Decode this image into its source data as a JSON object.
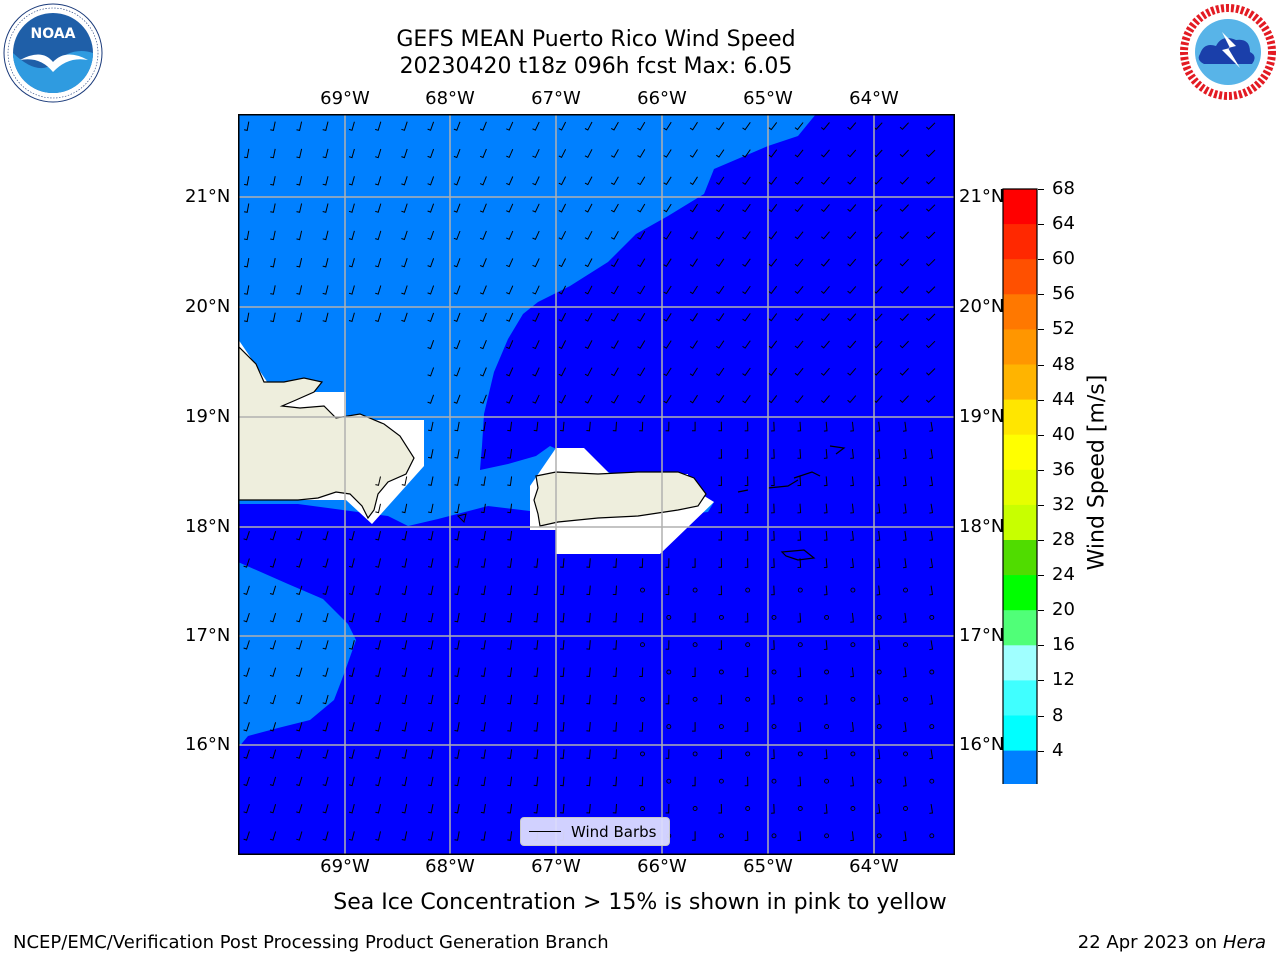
{
  "title": {
    "line1": "GEFS MEAN Puerto Rico Wind Speed",
    "line2": "20230420 t18z 096h fcst   Max: 6.05"
  },
  "logos": {
    "left": {
      "name": "NOAA",
      "ring_text": "NATIONAL OCEANIC AND ATMOSPHERIC ADMINISTRATION · U.S. DEPARTMENT OF COMMERCE"
    },
    "right": {
      "name": "NATIONAL WEATHER SERVICE"
    }
  },
  "map": {
    "lon_labels": [
      "69°W",
      "68°W",
      "67°W",
      "66°W",
      "65°W",
      "64°W"
    ],
    "lat_labels": [
      "21°N",
      "20°N",
      "19°N",
      "18°N",
      "17°N",
      "16°N"
    ],
    "legend_label": "Wind Barbs",
    "colors": {
      "speed_4_8": "#0080ff",
      "speed_below_4": "#0000ff",
      "land": "#eeeedd",
      "masked": "#ffffff",
      "grid": "#b0b0b0"
    }
  },
  "colorbar": {
    "label": "Wind Speed [m/s]",
    "ticks": [
      "68",
      "64",
      "60",
      "56",
      "52",
      "48",
      "44",
      "40",
      "36",
      "32",
      "28",
      "24",
      "20",
      "16",
      "12",
      "8",
      "4"
    ],
    "colors_top_to_bottom": [
      "#ff0000",
      "#ff2800",
      "#ff5000",
      "#ff7800",
      "#ff9600",
      "#ffb400",
      "#ffe600",
      "#ffff00",
      "#e6ff00",
      "#c8ff00",
      "#50dc00",
      "#00ff00",
      "#50ff78",
      "#a0ffff",
      "#40ffff",
      "#00ffff",
      "#0080ff"
    ],
    "extend_color": "#0000ff"
  },
  "footer": {
    "subtitle": "Sea Ice Concentration > 15% is shown in pink to yellow",
    "left": "NCEP/EMC/Verification Post Processing Product Generation Branch",
    "right_date": "22 Apr 2023 on",
    "right_machine": "Hera"
  },
  "chart_data": {
    "type": "map",
    "variable": "Wind Speed",
    "units": "m/s",
    "max_value": 6.05,
    "lon_range": [
      -70,
      -63.25
    ],
    "lat_range": [
      15,
      21.75
    ],
    "colorbar_levels": [
      4,
      8,
      12,
      16,
      20,
      24,
      28,
      32,
      36,
      40,
      44,
      48,
      52,
      56,
      60,
      64,
      68
    ]
  }
}
